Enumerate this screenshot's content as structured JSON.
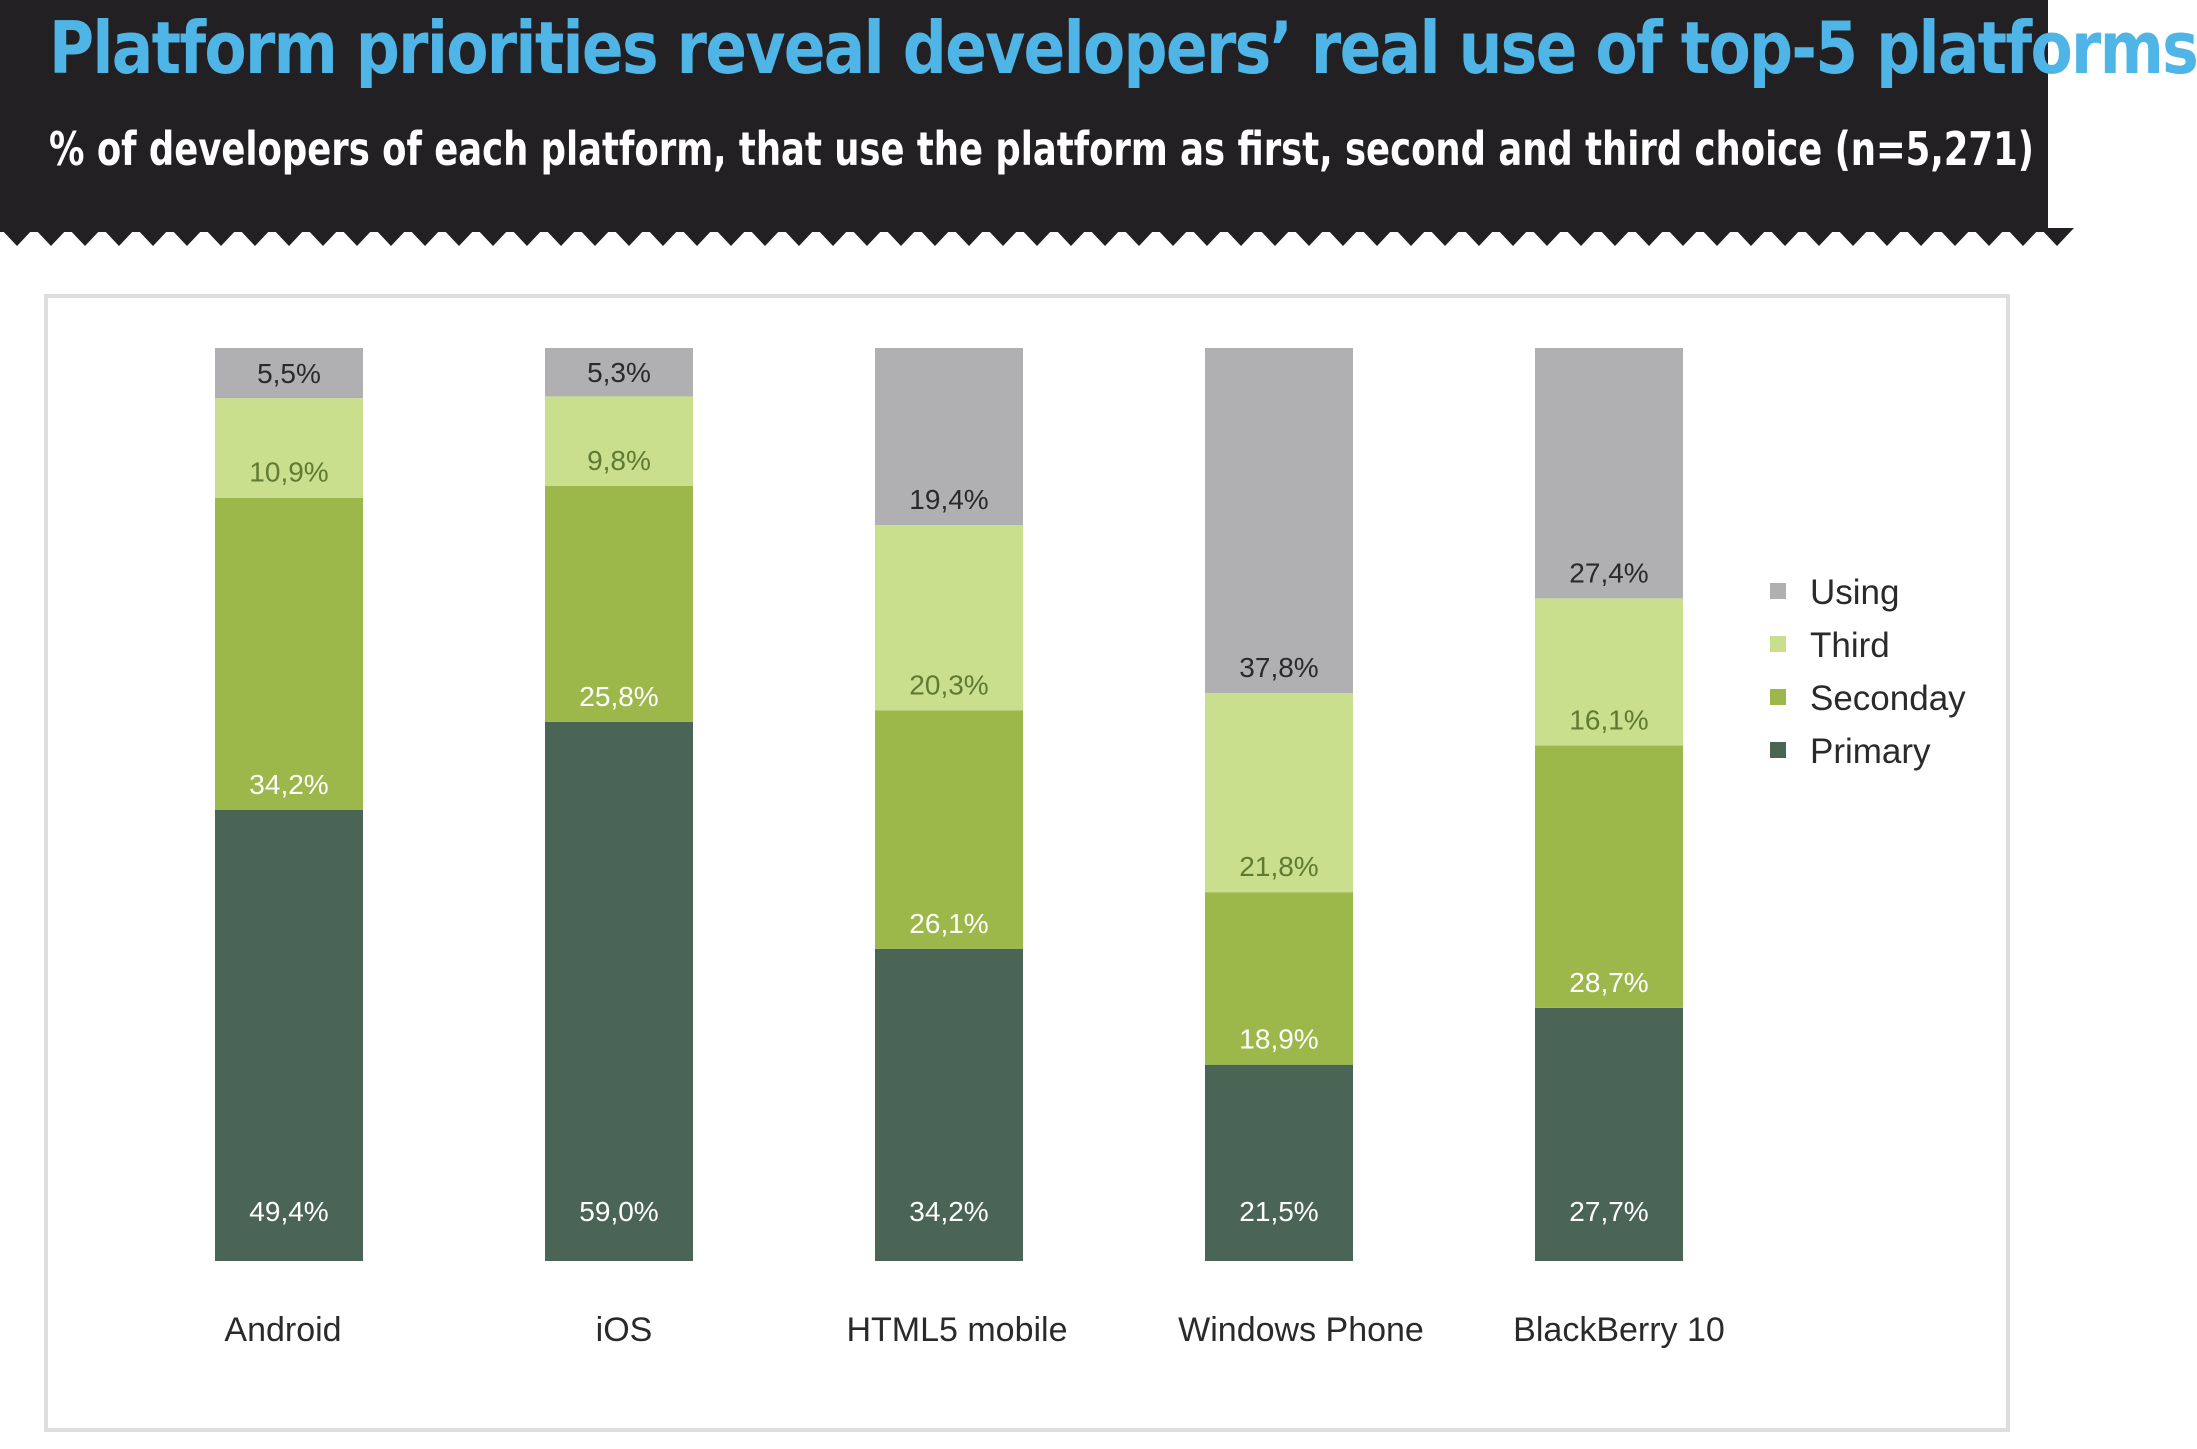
{
  "header": {
    "title": "Platform priorities reveal developers’ real use of top-5 platforms",
    "subtitle": "% of developers of each platform, that use the platform as first, second and third choice (n=5,271)"
  },
  "colors": {
    "header_bg": "#232023",
    "title": "#4fb5e6",
    "Primary": "#4a6455",
    "Seconday": "#9cb84a",
    "Third": "#c9df8e",
    "Using": "#b0b0b2",
    "label_light": "#ffffff",
    "label_dark": "#2a2a2a"
  },
  "chart_data": {
    "type": "bar",
    "stacked": true,
    "title": "Platform priorities reveal developers’ real use of top-5 platforms",
    "subtitle": "% of developers of each platform, that use the platform as first, second and third choice (n=5,271)",
    "categories": [
      "Android",
      "iOS",
      "HTML5 mobile",
      "Windows Phone",
      "BlackBerry 10"
    ],
    "series": [
      {
        "name": "Primary",
        "values": [
          49.4,
          59.0,
          34.2,
          21.5,
          27.7
        ],
        "labels": [
          "49,4%",
          "59,0%",
          "34,2%",
          "21,5%",
          "27,7%"
        ]
      },
      {
        "name": "Seconday",
        "values": [
          34.2,
          25.8,
          26.1,
          18.9,
          28.7
        ],
        "labels": [
          "34,2%",
          "25,8%",
          "26,1%",
          "18,9%",
          "28,7%"
        ]
      },
      {
        "name": "Third",
        "values": [
          10.9,
          9.8,
          20.3,
          21.8,
          16.1
        ],
        "labels": [
          "10,9%",
          "9,8%",
          "20,3%",
          "21,8%",
          "16,1%"
        ]
      },
      {
        "name": "Using",
        "values": [
          5.5,
          5.3,
          19.4,
          37.8,
          27.4
        ],
        "labels": [
          "5,5%",
          "5,3%",
          "19,4%",
          "37,8%",
          "27,4%"
        ]
      }
    ],
    "legend_order": [
      "Using",
      "Third",
      "Seconday",
      "Primary"
    ],
    "legend_position": "right",
    "ylim": [
      0,
      100
    ],
    "grid": false,
    "xlabel": "",
    "ylabel": ""
  }
}
